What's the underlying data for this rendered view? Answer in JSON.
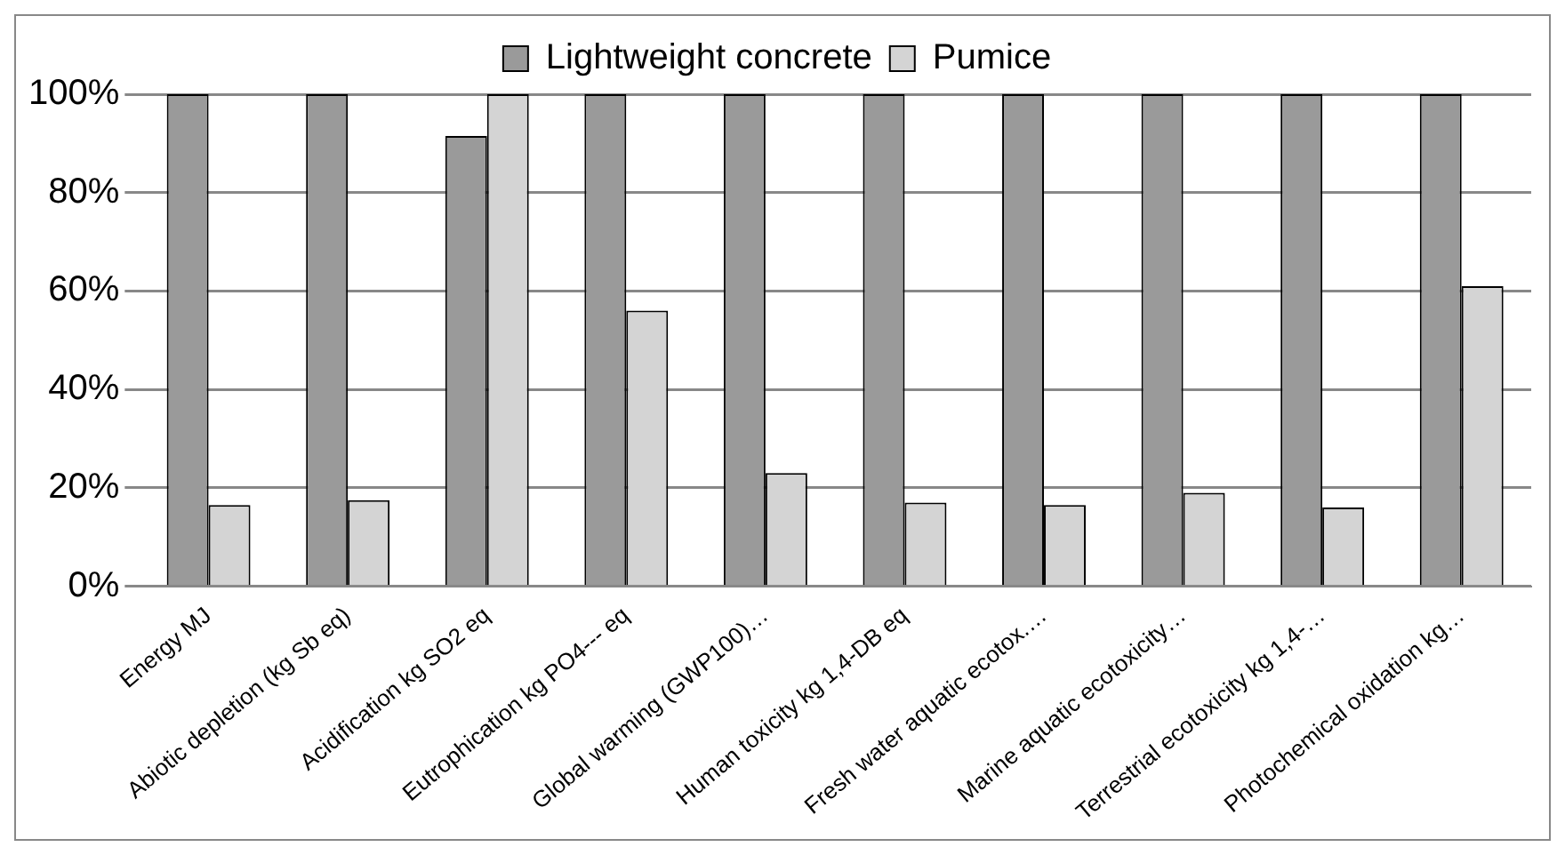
{
  "chart_data": {
    "type": "bar",
    "categories": [
      "Energy MJ",
      "Abiotic depletion (kg Sb eq)",
      "Acidification kg SO2 eq",
      "Eutrophication kg PO4--- eq",
      "Global warming (GWP100)…",
      "Human toxicity kg 1,4-DB eq",
      "Fresh water aquatic ecotox.…",
      "Marine aquatic ecotoxicity…",
      "Terrestrial ecotoxicity kg 1,4-…",
      "Photochemical oxidation kg…"
    ],
    "series": [
      {
        "name": "Lightweight concrete",
        "color": "#9a9a9a",
        "values": [
          100,
          100,
          91.5,
          100,
          100,
          100,
          100,
          100,
          100,
          100
        ]
      },
      {
        "name": "Pumice",
        "color": "#d4d4d4",
        "values": [
          16.5,
          17.5,
          100,
          56,
          23,
          17,
          16.5,
          19,
          16,
          61
        ]
      }
    ],
    "ylim": [
      0,
      100
    ],
    "yticks": [
      {
        "value": 0,
        "label": "0%"
      },
      {
        "value": 20,
        "label": "20%"
      },
      {
        "value": 40,
        "label": "40%"
      },
      {
        "value": 60,
        "label": "60%"
      },
      {
        "value": 80,
        "label": "80%"
      },
      {
        "value": 100,
        "label": "100%"
      }
    ],
    "grid": "y",
    "legend": "top"
  }
}
